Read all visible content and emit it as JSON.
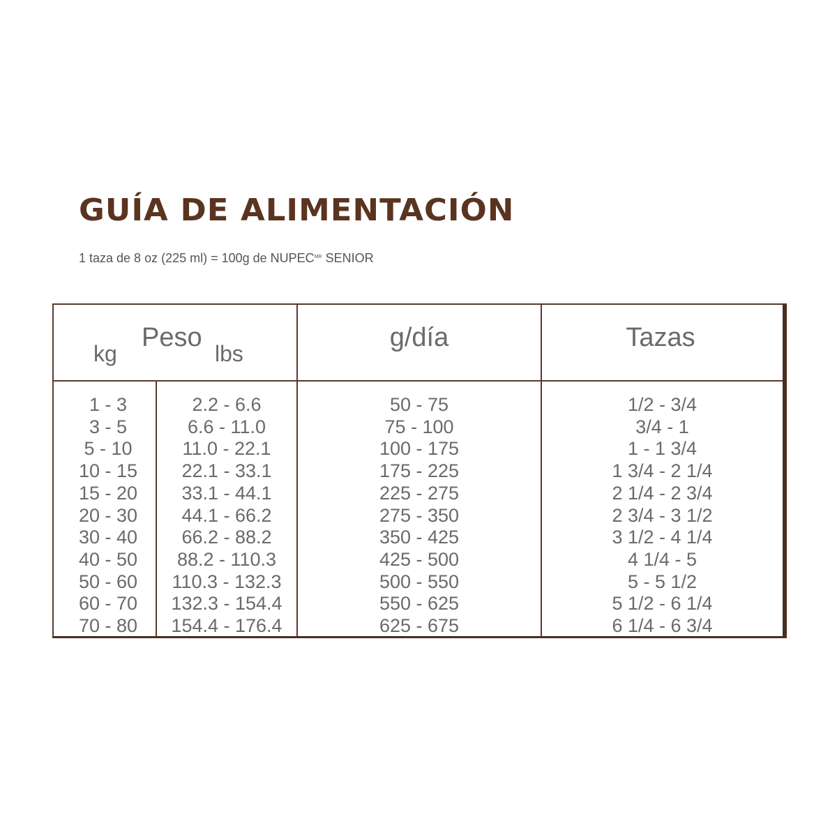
{
  "title": "GUÍA DE ALIMENTACIÓN",
  "subtitle": {
    "text": "1 taza de 8 oz (225 ml) = 100g de NUPEC",
    "superscript": "MR",
    "suffix": " SENIOR"
  },
  "table": {
    "headers": {
      "peso": "Peso",
      "kg": "kg",
      "lbs": "lbs",
      "g_dia": "g/día",
      "tazas": "Tazas"
    },
    "rows": [
      {
        "kg": "1 - 3",
        "lbs": "2.2 - 6.6",
        "g": "50 - 75",
        "tazas": "1/2 - 3/4"
      },
      {
        "kg": "3 - 5",
        "lbs": "6.6 - 11.0",
        "g": "75 - 100",
        "tazas": "3/4 - 1"
      },
      {
        "kg": "5 - 10",
        "lbs": "11.0 - 22.1",
        "g": "100 - 175",
        "tazas": "1 - 1 3/4"
      },
      {
        "kg": "10 - 15",
        "lbs": "22.1 - 33.1",
        "g": "175 - 225",
        "tazas": "1 3/4 - 2 1/4"
      },
      {
        "kg": "15 - 20",
        "lbs": "33.1 - 44.1",
        "g": "225 - 275",
        "tazas": "2 1/4 - 2 3/4"
      },
      {
        "kg": "20 - 30",
        "lbs": "44.1 - 66.2",
        "g": "275 - 350",
        "tazas": "2 3/4 - 3 1/2"
      },
      {
        "kg": "30 - 40",
        "lbs": "66.2 - 88.2",
        "g": "350 - 425",
        "tazas": "3 1/2 - 4 1/4"
      },
      {
        "kg": "40 - 50",
        "lbs": "88.2 - 110.3",
        "g": "425 - 500",
        "tazas": "4 1/4 - 5"
      },
      {
        "kg": "50 - 60",
        "lbs": "110.3 - 132.3",
        "g": "500 - 550",
        "tazas": "5 - 5 1/2"
      },
      {
        "kg": "60 - 70",
        "lbs": "132.3 - 154.4",
        "g": "550 - 625",
        "tazas": "5 1/2 - 6 1/4"
      },
      {
        "kg": "70 - 80",
        "lbs": "154.4 - 176.4",
        "g": "625 - 675",
        "tazas": "6 1/4 - 6 3/4"
      }
    ]
  }
}
